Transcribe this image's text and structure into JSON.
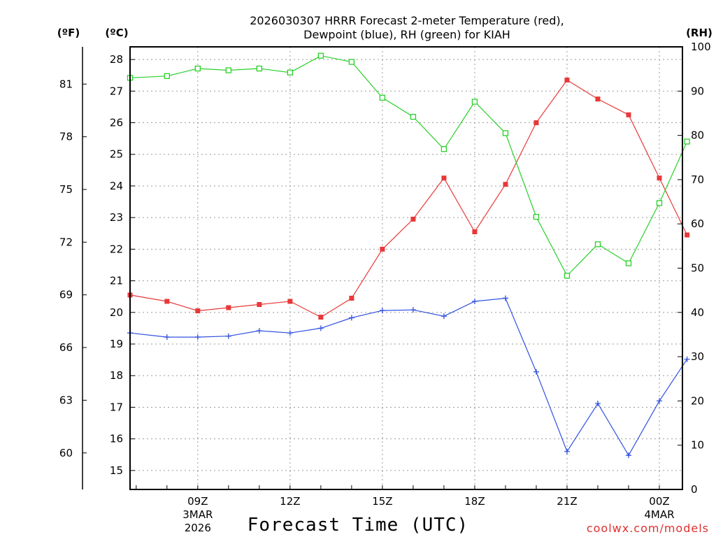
{
  "chart_data": {
    "type": "line",
    "title_line1": "2026030307 HRRR Forecast 2-meter Temperature (red),",
    "title_line2": "Dewpoint (blue), RH (green) for KIAH",
    "xlabel": "Forecast Time (UTC)",
    "credit": "coolwx.com/models",
    "left_outer_unit": "(ºF)",
    "left_inner_unit": "(ºC)",
    "right_unit": "(RH)",
    "x_start_hour": 6.8,
    "x_end_hour": 24.75,
    "x_ticks": [
      {
        "hour": 9,
        "lines": [
          "09Z",
          "3MAR",
          "2026"
        ]
      },
      {
        "hour": 12,
        "lines": [
          "12Z"
        ]
      },
      {
        "hour": 15,
        "lines": [
          "15Z"
        ]
      },
      {
        "hour": 18,
        "lines": [
          "18Z"
        ]
      },
      {
        "hour": 21,
        "lines": [
          "21Z"
        ]
      },
      {
        "hour": 24,
        "lines": [
          "00Z",
          "4MAR"
        ]
      }
    ],
    "celsius_range": [
      14.4,
      28.4
    ],
    "celsius_ticks": [
      15,
      16,
      17,
      18,
      19,
      20,
      21,
      22,
      23,
      24,
      25,
      26,
      27,
      28
    ],
    "fahrenheit_ticks": [
      60,
      63,
      66,
      69,
      72,
      75,
      78,
      81
    ],
    "rh_range": [
      0,
      100
    ],
    "rh_ticks": [
      0,
      10,
      20,
      30,
      40,
      50,
      60,
      70,
      80,
      90,
      100
    ],
    "grid": true,
    "series": [
      {
        "name": "Temperature",
        "color": "#e83838",
        "axis": "celsius",
        "marker": "filled-square",
        "x": [
          6.8,
          8,
          9,
          10,
          11,
          12,
          13,
          14,
          15,
          16,
          17,
          18,
          19,
          20,
          21,
          22,
          23,
          24,
          24.9
        ],
        "values": [
          20.55,
          20.35,
          20.05,
          20.15,
          20.25,
          20.35,
          19.85,
          20.45,
          22.0,
          22.95,
          24.25,
          22.55,
          24.05,
          26.0,
          27.35,
          26.75,
          26.25,
          24.25,
          22.45
        ]
      },
      {
        "name": "Dewpoint",
        "color": "#3050e0",
        "axis": "celsius",
        "marker": "plus",
        "x": [
          6.8,
          8,
          9,
          10,
          11,
          12,
          13,
          14,
          15,
          16,
          17,
          18,
          19,
          20,
          21,
          22,
          23,
          24,
          24.9
        ],
        "values": [
          19.35,
          19.22,
          19.22,
          19.25,
          19.42,
          19.35,
          19.5,
          19.83,
          20.06,
          20.08,
          19.88,
          20.35,
          20.45,
          18.12,
          15.6,
          17.12,
          15.48,
          17.2,
          18.52
        ]
      },
      {
        "name": "RH",
        "color": "#28d028",
        "axis": "rh",
        "marker": "open-square",
        "x": [
          6.8,
          8,
          9,
          10,
          11,
          12,
          13,
          14,
          15,
          16,
          17,
          18,
          19,
          20,
          21,
          22,
          23,
          24,
          24.9
        ],
        "values": [
          93.0,
          93.4,
          95.1,
          94.7,
          95.1,
          94.2,
          98.0,
          96.6,
          88.5,
          84.2,
          76.9,
          87.6,
          80.5,
          61.6,
          48.3,
          55.4,
          51.1,
          64.7,
          78.6
        ]
      }
    ]
  }
}
